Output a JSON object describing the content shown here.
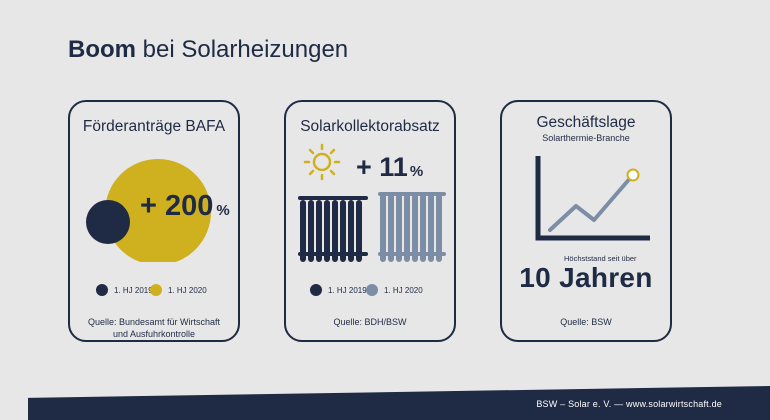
{
  "title": {
    "bold": "Boom",
    "rest": " bei Solarheizungen"
  },
  "cards": [
    {
      "title": "Förderanträge BAFA",
      "percent": "+ 200",
      "percent_sign": "%",
      "legend": [
        "1. HJ 2019",
        "1. HJ 2020"
      ],
      "source": [
        "Quelle: Bundesamt für Wirtschaft",
        "und Ausfuhrkontrolle"
      ]
    },
    {
      "title": "Solarkollektorabsatz",
      "percent": "+ 11",
      "percent_sign": "%",
      "legend": [
        "1. HJ 2019",
        "1. HJ 2020"
      ],
      "source": [
        "Quelle: BDH/BSW"
      ]
    },
    {
      "title": "Geschäftslage",
      "subtitle": "Solarthermie-Branche",
      "caption": "Höchststand seit über",
      "big": "10 Jahren",
      "source": [
        "Quelle: BSW"
      ]
    }
  ],
  "footer": "BSW – Solar e. V. — www.solarwirtschaft.de",
  "colors": {
    "navy": "#1f2a44",
    "gold": "#cfb01e",
    "steel": "#7b8ea6",
    "background": "#e7e7e7"
  },
  "icons": [
    "sun-icon",
    "radiator-icon",
    "line-chart-icon"
  ]
}
